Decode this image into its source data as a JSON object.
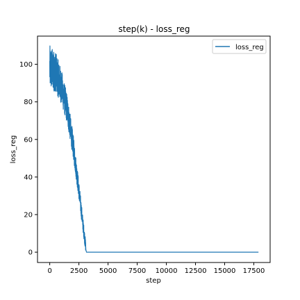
{
  "chart_data": {
    "type": "line",
    "title": "step(k) - loss_reg",
    "xlabel": "step",
    "ylabel": "loss_reg",
    "xlim": [
      -1050,
      18900
    ],
    "ylim": [
      -5.5,
      115
    ],
    "xticks": [
      0,
      2500,
      5000,
      7500,
      10000,
      12500,
      15000,
      17500
    ],
    "xtick_labels": [
      "0",
      "2500",
      "5000",
      "7500",
      "10000",
      "12500",
      "15000",
      "17500"
    ],
    "yticks": [
      0,
      20,
      40,
      60,
      80,
      100
    ],
    "ytick_labels": [
      "0",
      "20",
      "40",
      "60",
      "80",
      "100"
    ],
    "grid": false,
    "legend_position": "top-right",
    "series": [
      {
        "name": "loss_reg",
        "color": "#1f77b4",
        "x_start": 0,
        "x_end": 17900,
        "points": [
          [
            0,
            98
          ],
          [
            500,
            96
          ],
          [
            1000,
            88
          ],
          [
            1500,
            76
          ],
          [
            2000,
            57
          ],
          [
            2500,
            33
          ],
          [
            2900,
            12
          ],
          [
            3150,
            0
          ],
          [
            17900,
            0
          ]
        ],
        "noise_until": 3100,
        "noise_amplitude": [
          12,
          3
        ]
      }
    ]
  }
}
